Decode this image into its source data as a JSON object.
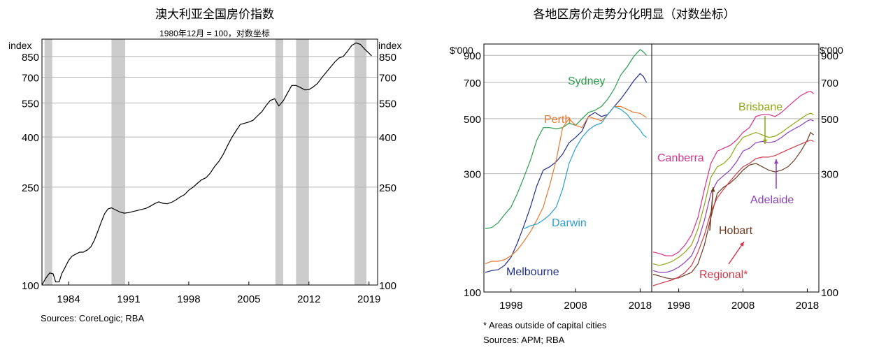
{
  "chart_data": [
    {
      "type": "line",
      "title": "澳大利亚全国房价指数",
      "subtitle": "1980年12月 = 100，对数坐标",
      "ylabel_left": "index",
      "ylabel_right": "index",
      "y_scale": "log",
      "ylim": [
        100,
        1000
      ],
      "y_ticks": [
        100,
        250,
        400,
        550,
        700,
        850
      ],
      "y_tick_labels": [
        "100",
        "250",
        "400",
        "550",
        "700",
        "850"
      ],
      "xlim": [
        1980.9,
        2020.0
      ],
      "x_ticks": [
        1984,
        1991,
        1998,
        2005,
        2012,
        2019
      ],
      "x_tick_labels": [
        "1984",
        "1991",
        "1998",
        "2005",
        "2012",
        "2019"
      ],
      "grid": true,
      "recession_shading": [
        [
          1981.2,
          1982.1
        ],
        [
          1989.0,
          1990.6
        ],
        [
          2008.1,
          2009.0
        ],
        [
          2010.5,
          2012.0
        ],
        [
          2017.3,
          2018.7
        ]
      ],
      "series": [
        {
          "color": "#000000",
          "x": [
            1980.9,
            1981.3,
            1981.8,
            1982.2,
            1982.5,
            1982.9,
            1983.2,
            1983.6,
            1984.0,
            1984.4,
            1984.9,
            1985.3,
            1985.7,
            1986.2,
            1986.6,
            1987.0,
            1987.4,
            1987.8,
            1988.2,
            1988.6,
            1989.0,
            1989.5,
            1990.0,
            1990.5,
            1991.0,
            1991.5,
            1992.0,
            1992.5,
            1993.0,
            1993.5,
            1994.0,
            1994.5,
            1995.0,
            1995.5,
            1996.0,
            1996.5,
            1997.0,
            1997.5,
            1998.0,
            1998.5,
            1999.0,
            1999.5,
            2000.0,
            2000.5,
            2001.0,
            2001.5,
            2002.0,
            2002.5,
            2003.0,
            2003.5,
            2004.0,
            2004.5,
            2005.0,
            2005.5,
            2006.0,
            2006.5,
            2007.0,
            2007.5,
            2008.0,
            2008.5,
            2009.0,
            2009.5,
            2010.0,
            2010.5,
            2011.0,
            2011.5,
            2012.0,
            2012.5,
            2013.0,
            2013.5,
            2014.0,
            2014.5,
            2015.0,
            2015.5,
            2016.0,
            2016.5,
            2017.0,
            2017.5,
            2018.0,
            2018.5,
            2019.0,
            2019.3
          ],
          "y": [
            100,
            106,
            112,
            111,
            103,
            103,
            111,
            118,
            126,
            131,
            134,
            136,
            136,
            139,
            143,
            152,
            165,
            180,
            195,
            204,
            206,
            202,
            198,
            196,
            197,
            199,
            201,
            203,
            205,
            209,
            214,
            218,
            215,
            214,
            217,
            222,
            228,
            233,
            243,
            250,
            259,
            268,
            273,
            285,
            303,
            318,
            339,
            368,
            397,
            423,
            450,
            455,
            460,
            468,
            487,
            506,
            536,
            563,
            572,
            535,
            561,
            603,
            648,
            648,
            636,
            622,
            623,
            639,
            661,
            697,
            732,
            769,
            806,
            838,
            850,
            893,
            944,
            965,
            952,
            910,
            876,
            855
          ]
        }
      ],
      "source_note": "Sources:  CoreLogic; RBA"
    },
    {
      "type": "line",
      "title": "各地区房价走势分化明显（对数坐标）",
      "ylabel_left": "$'000",
      "ylabel_right": "$'000",
      "y_scale": "log",
      "ylim": [
        100,
        1000
      ],
      "y_ticks": [
        100,
        300,
        500,
        700,
        900
      ],
      "y_tick_labels": [
        "100",
        "300",
        "500",
        "700",
        "900"
      ],
      "panels": [
        {
          "xlim": [
            1993.8,
            2019.8
          ],
          "x_ticks": [
            1998,
            2008,
            2018
          ],
          "x_tick_labels": [
            "1998",
            "2008",
            "2018"
          ],
          "series": [
            {
              "name": "Sydney",
              "color": "#2a9d4b",
              "x": [
                1994,
                1995,
                1996,
                1997,
                1998,
                1999,
                2000,
                2001,
                2002,
                2003,
                2004,
                2005,
                2006,
                2007,
                2008,
                2009,
                2010,
                2011,
                2012,
                2013,
                2014,
                2015,
                2016,
                2017,
                2018,
                2018.5,
                2019
              ],
              "y": [
                180,
                182,
                190,
                205,
                220,
                250,
                290,
                340,
                410,
                460,
                460,
                455,
                460,
                480,
                470,
                500,
                530,
                540,
                560,
                600,
                660,
                750,
                810,
                890,
                950,
                930,
                900
              ]
            },
            {
              "name": "Melbourne",
              "color": "#1f2f8a",
              "x": [
                1994,
                1995,
                1996,
                1997,
                1998,
                1999,
                2000,
                2001,
                2002,
                2003,
                2004,
                2005,
                2006,
                2007,
                2008,
                2009,
                2010,
                2011,
                2012,
                2013,
                2014,
                2015,
                2016,
                2017,
                2018,
                2018.5,
                2019
              ],
              "y": [
                120,
                122,
                123,
                128,
                138,
                158,
                185,
                220,
                268,
                310,
                320,
                335,
                360,
                400,
                420,
                445,
                510,
                530,
                510,
                520,
                560,
                600,
                650,
                710,
                760,
                740,
                700
              ]
            },
            {
              "name": "Perth",
              "color": "#e8772e",
              "x": [
                1994,
                1995,
                1996,
                1997,
                1998,
                1999,
                2000,
                2001,
                2002,
                2003,
                2004,
                2005,
                2006,
                2007,
                2008,
                2009,
                2010,
                2011,
                2012,
                2013,
                2014,
                2015,
                2016,
                2017,
                2018,
                2018.5,
                2019
              ],
              "y": [
                130,
                133,
                133,
                135,
                140,
                148,
                160,
                175,
                195,
                220,
                270,
                340,
                460,
                500,
                470,
                460,
                510,
                500,
                490,
                520,
                560,
                560,
                545,
                530,
                525,
                515,
                505
              ]
            },
            {
              "name": "Darwin",
              "color": "#2b9fd1",
              "x": [
                2000,
                2001,
                2002,
                2003,
                2004,
                2005,
                2006,
                2007,
                2008,
                2009,
                2010,
                2011,
                2012,
                2013,
                2014,
                2015,
                2016,
                2017,
                2018,
                2018.5,
                2019
              ],
              "y": [
                180,
                185,
                188,
                195,
                205,
                220,
                260,
                330,
                380,
                420,
                450,
                470,
                480,
                520,
                560,
                545,
                520,
                480,
                450,
                430,
                420
              ]
            }
          ]
        },
        {
          "xlim": [
            1993.8,
            2019.8
          ],
          "x_ticks": [
            1998,
            2008,
            2018
          ],
          "x_tick_labels": [
            "1998",
            "2008",
            "2018"
          ],
          "series": [
            {
              "name": "Canberra",
              "color": "#d6338a",
              "x": [
                1994,
                1995,
                1996,
                1997,
                1998,
                1999,
                2000,
                2001,
                2002,
                2003,
                2004,
                2005,
                2006,
                2007,
                2008,
                2009,
                2010,
                2011,
                2012,
                2013,
                2014,
                2015,
                2016,
                2017,
                2018,
                2018.5,
                2019
              ],
              "y": [
                145,
                143,
                140,
                140,
                145,
                155,
                170,
                200,
                260,
                330,
                370,
                380,
                390,
                410,
                440,
                460,
                510,
                520,
                520,
                510,
                530,
                560,
                590,
                620,
                640,
                645,
                630
              ]
            },
            {
              "name": "Brisbane",
              "color": "#8fa614",
              "x": [
                1994,
                1995,
                1996,
                1997,
                1998,
                1999,
                2000,
                2001,
                2002,
                2003,
                2004,
                2005,
                2006,
                2007,
                2008,
                2009,
                2010,
                2011,
                2012,
                2013,
                2014,
                2015,
                2016,
                2017,
                2018,
                2018.5,
                2019
              ],
              "y": [
                130,
                128,
                130,
                133,
                138,
                145,
                155,
                180,
                225,
                290,
                320,
                330,
                350,
                390,
                420,
                430,
                440,
                430,
                420,
                425,
                440,
                460,
                480,
                500,
                520,
                525,
                520
              ]
            },
            {
              "name": "Adelaide",
              "color": "#8d3fb8",
              "x": [
                1994,
                1995,
                1996,
                1997,
                1998,
                1999,
                2000,
                2001,
                2002,
                2003,
                2004,
                2005,
                2006,
                2007,
                2008,
                2009,
                2010,
                2011,
                2012,
                2013,
                2014,
                2015,
                2016,
                2017,
                2018,
                2018.5,
                2019
              ],
              "y": [
                122,
                120,
                120,
                122,
                126,
                132,
                140,
                160,
                195,
                250,
                280,
                295,
                310,
                335,
                370,
                380,
                400,
                405,
                400,
                405,
                420,
                440,
                455,
                470,
                490,
                495,
                490
              ]
            },
            {
              "name": "Hobart",
              "color": "#6e3b1f",
              "x": [
                1994,
                1995,
                1996,
                1997,
                1998,
                1999,
                2000,
                2001,
                2002,
                2003,
                2004,
                2005,
                2006,
                2007,
                2008,
                2009,
                2010,
                2011,
                2012,
                2013,
                2014,
                2015,
                2016,
                2017,
                2018,
                2018.5,
                2019
              ],
              "y": [
                118,
                116,
                114,
                113,
                114,
                117,
                120,
                130,
                155,
                200,
                250,
                265,
                275,
                290,
                310,
                325,
                330,
                320,
                310,
                305,
                310,
                320,
                340,
                370,
                410,
                440,
                430
              ]
            },
            {
              "name": "Regional*",
              "color": "#d13a4a",
              "x": [
                1994,
                1995,
                1996,
                1997,
                1998,
                1999,
                2000,
                2001,
                2002,
                2003,
                2004,
                2005,
                2006,
                2007,
                2008,
                2009,
                2010,
                2011,
                2012,
                2013,
                2014,
                2015,
                2016,
                2017,
                2018,
                2018.5,
                2019
              ],
              "y": [
                106,
                108,
                110,
                112,
                115,
                120,
                128,
                145,
                170,
                210,
                240,
                260,
                280,
                300,
                320,
                330,
                345,
                350,
                350,
                355,
                365,
                375,
                385,
                395,
                405,
                410,
                405
              ]
            }
          ]
        }
      ],
      "footnote": "*        Areas outside of capital cities",
      "source_note": "Sources:   APM; RBA"
    }
  ]
}
